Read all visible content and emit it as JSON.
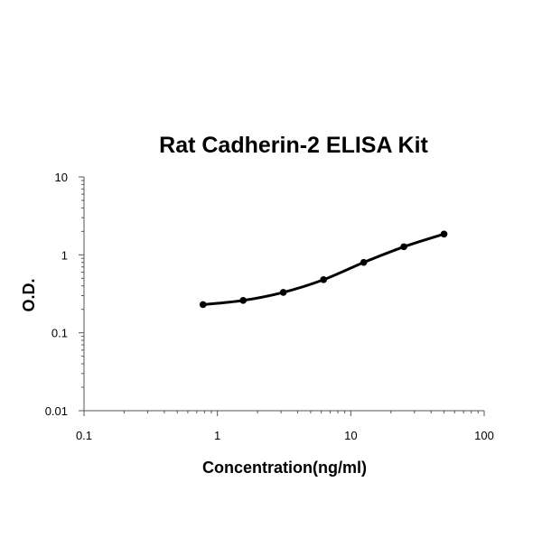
{
  "chart_data": {
    "type": "scatter",
    "title": "Rat Cadherin-2 ELISA Kit",
    "xlabel": "Concentration(ng/ml)",
    "ylabel": "O.D.",
    "x_scale": "log",
    "y_scale": "log",
    "xlim": [
      0.1,
      100
    ],
    "ylim": [
      0.01,
      10
    ],
    "x_ticks": [
      "0.1",
      "1",
      "10",
      "100"
    ],
    "y_ticks": [
      "0.01",
      "0.1",
      "1",
      "10"
    ],
    "grid": false,
    "legend": "none",
    "series": [
      {
        "x": [
          0.78,
          1.56,
          3.12,
          6.25,
          12.5,
          25,
          50
        ],
        "y": [
          0.23,
          0.26,
          0.33,
          0.48,
          0.8,
          1.27,
          1.85
        ]
      }
    ],
    "fit_curve": true,
    "colors": {
      "marker": "#000000",
      "line": "#000000",
      "axis": "#555555"
    }
  }
}
